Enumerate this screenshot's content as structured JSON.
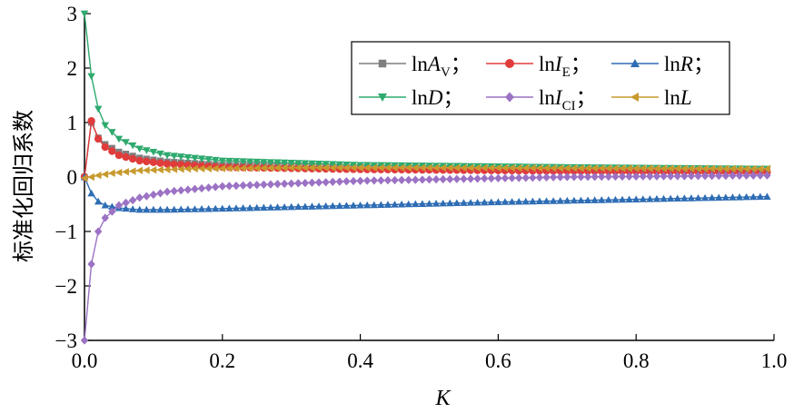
{
  "chart_data": {
    "type": "line",
    "title": "",
    "xlabel": "K",
    "ylabel": "标准化回归系数",
    "xlim": [
      0.0,
      1.0
    ],
    "ylim": [
      -3,
      3
    ],
    "xticks": [
      0.0,
      0.2,
      0.4,
      0.6,
      0.8,
      1.0
    ],
    "xtick_labels": [
      "0.0",
      "0.2",
      "0.4",
      "0.6",
      "0.8",
      "1.0"
    ],
    "yticks": [
      -3,
      -2,
      -1,
      0,
      1,
      2,
      3
    ],
    "ytick_labels": [
      "−3",
      "−2",
      "−1",
      "0",
      "1",
      "2",
      "3"
    ],
    "grid": false,
    "legend_position": "top-right",
    "x_step": 0.01,
    "series": [
      {
        "key": "AV",
        "legend": {
          "prefix": "ln",
          "var": "A",
          "sub": "V",
          "suffix": "；"
        },
        "color": "#7f7f7f",
        "marker": "square",
        "knots": [
          [
            0,
            0
          ],
          [
            0.01,
            1.0
          ],
          [
            0.02,
            0.72
          ],
          [
            0.03,
            0.6
          ],
          [
            0.05,
            0.46
          ],
          [
            0.08,
            0.35
          ],
          [
            0.12,
            0.28
          ],
          [
            0.2,
            0.22
          ],
          [
            0.4,
            0.17
          ],
          [
            0.7,
            0.14
          ],
          [
            0.99,
            0.12
          ]
        ]
      },
      {
        "key": "IE",
        "legend": {
          "prefix": "ln",
          "var": "I",
          "sub": "E",
          "suffix": "；"
        },
        "color": "#e03c3c",
        "marker": "circle",
        "knots": [
          [
            0,
            0
          ],
          [
            0.01,
            1.03
          ],
          [
            0.02,
            0.7
          ],
          [
            0.03,
            0.55
          ],
          [
            0.05,
            0.4
          ],
          [
            0.08,
            0.3
          ],
          [
            0.12,
            0.24
          ],
          [
            0.2,
            0.18
          ],
          [
            0.4,
            0.14
          ],
          [
            0.7,
            0.11
          ],
          [
            0.99,
            0.09
          ]
        ]
      },
      {
        "key": "R",
        "legend": {
          "prefix": "ln",
          "var": "R",
          "sub": "",
          "suffix": "；"
        },
        "color": "#2e6db4",
        "marker": "triangle-up",
        "knots": [
          [
            0,
            0
          ],
          [
            0.01,
            -0.3
          ],
          [
            0.02,
            -0.45
          ],
          [
            0.03,
            -0.52
          ],
          [
            0.05,
            -0.57
          ],
          [
            0.08,
            -0.6
          ],
          [
            0.12,
            -0.6
          ],
          [
            0.2,
            -0.58
          ],
          [
            0.4,
            -0.52
          ],
          [
            0.6,
            -0.46
          ],
          [
            0.8,
            -0.41
          ],
          [
            0.99,
            -0.36
          ]
        ]
      },
      {
        "key": "D",
        "legend": {
          "prefix": "ln",
          "var": "D",
          "sub": "",
          "suffix": "；"
        },
        "color": "#2eaa6e",
        "marker": "triangle-down",
        "knots": [
          [
            0,
            3.0
          ],
          [
            0.01,
            1.85
          ],
          [
            0.02,
            1.25
          ],
          [
            0.03,
            0.95
          ],
          [
            0.05,
            0.7
          ],
          [
            0.08,
            0.52
          ],
          [
            0.12,
            0.4
          ],
          [
            0.2,
            0.3
          ],
          [
            0.4,
            0.22
          ],
          [
            0.7,
            0.18
          ],
          [
            0.99,
            0.15
          ]
        ]
      },
      {
        "key": "ICI",
        "legend": {
          "prefix": "ln",
          "var": "I",
          "sub": "CI",
          "suffix": "；"
        },
        "color": "#9b72c4",
        "marker": "diamond",
        "knots": [
          [
            0,
            -3.0
          ],
          [
            0.01,
            -1.6
          ],
          [
            0.02,
            -1.0
          ],
          [
            0.03,
            -0.75
          ],
          [
            0.05,
            -0.52
          ],
          [
            0.08,
            -0.38
          ],
          [
            0.12,
            -0.27
          ],
          [
            0.2,
            -0.17
          ],
          [
            0.4,
            -0.07
          ],
          [
            0.7,
            0.0
          ],
          [
            0.99,
            0.03
          ]
        ]
      },
      {
        "key": "L",
        "legend": {
          "prefix": "ln",
          "var": "L",
          "sub": "",
          "suffix": ""
        },
        "color": "#c89a2e",
        "marker": "triangle-left",
        "knots": [
          [
            0,
            -0.02
          ],
          [
            0.01,
            0.0
          ],
          [
            0.02,
            0.03
          ],
          [
            0.04,
            0.07
          ],
          [
            0.08,
            0.12
          ],
          [
            0.15,
            0.15
          ],
          [
            0.3,
            0.17
          ],
          [
            0.5,
            0.17
          ],
          [
            0.8,
            0.16
          ],
          [
            0.99,
            0.15
          ]
        ]
      }
    ]
  }
}
